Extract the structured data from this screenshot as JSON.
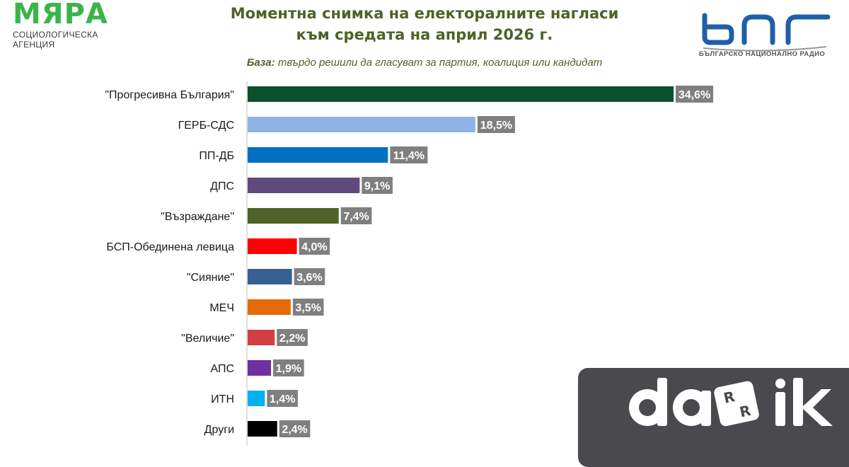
{
  "header": {
    "logo_left": {
      "word": "МЯРА",
      "subtitle": "СОЦИОЛОГИЧЕСКА АГЕНЦИЯ"
    },
    "title_line1": "Моментна снимка на електоралните нагласи",
    "title_line2": "към средата на април 2026 г.",
    "base_label": "База:",
    "base_text": " твърдо решили да гласуват за партия, коалиция или кандидат",
    "logo_right": {
      "text": "БЪЛГАРСКО НАЦИОНАЛНО РАДИО",
      "icon": "bnr-logo-icon"
    }
  },
  "watermark": {
    "icon": "darik-logo-icon",
    "text": "darik"
  },
  "colors": {
    "title": "#4f6228",
    "label_box": "#7f7f7f",
    "label_text": "#ffffff",
    "axis": "#bfbfbf",
    "bnr_blue": "#1f5fa8",
    "myara_green": "#3cb44b"
  },
  "chart_data": {
    "type": "bar",
    "orientation": "horizontal",
    "categories": [
      "\"Прогресивна България\"",
      "ГЕРБ-СДС",
      "ПП-ДБ",
      "ДПС",
      "\"Възраждане\"",
      "БСП-Обединена левица",
      "\"Сияние\"",
      "МЕЧ",
      "\"Величие\"",
      "АПС",
      "ИТН",
      "Други"
    ],
    "values": [
      34.6,
      18.5,
      11.4,
      9.1,
      7.4,
      4.0,
      3.6,
      3.5,
      2.2,
      1.9,
      1.4,
      2.4
    ],
    "data_labels": [
      "34,6%",
      "18,5%",
      "11,4%",
      "9,1%",
      "7,4%",
      "4,0%",
      "3,6%",
      "3,5%",
      "2,2%",
      "1,9%",
      "1,4%",
      "2,4%"
    ],
    "bar_colors": [
      "#0b5130",
      "#8db3e2",
      "#0070c0",
      "#604a7b",
      "#4f6228",
      "#ff0000",
      "#366092",
      "#e36c09",
      "#d14040",
      "#7030a0",
      "#00b0f0",
      "#000000"
    ],
    "value_unit": "%",
    "xlim": [
      0,
      35
    ],
    "grid": false,
    "legend": "none",
    "title": "Моментна снимка на електоралните нагласи към средата на април 2026 г.",
    "xlabel": "",
    "ylabel": ""
  }
}
